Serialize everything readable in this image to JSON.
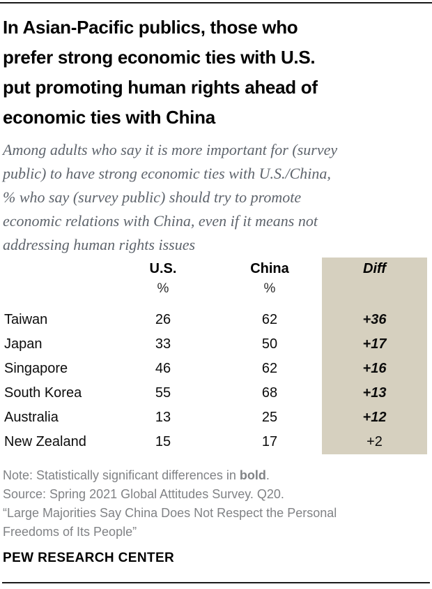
{
  "colors": {
    "diff_column_bg": "#d6d0bf",
    "title_text": "#000000",
    "subtitle_text": "#5e646c",
    "footnote_text": "#808285",
    "rule": "#1a1a1a"
  },
  "header": {
    "title": "In Asian-Pacific publics, those who\nprefer strong economic ties with U.S.\nput promoting human rights ahead of\neconomic ties with China",
    "subtitle": "Among adults who say it is more important for (survey\npublic) to have strong economic ties with U.S./China,\n% who say (survey public) should try to promote\neconomic relations with China, even if it means not\naddressing human rights issues"
  },
  "table": {
    "columns": [
      {
        "label": "U.S.",
        "unit": "%"
      },
      {
        "label": "China",
        "unit": "%"
      },
      {
        "label": "Diff",
        "unit": ""
      }
    ],
    "rows": [
      {
        "country": "Taiwan",
        "us": "26",
        "china": "62",
        "diff": "+36",
        "significant": true
      },
      {
        "country": "Japan",
        "us": "33",
        "china": "50",
        "diff": "+17",
        "significant": true
      },
      {
        "country": "Singapore",
        "us": "46",
        "china": "62",
        "diff": "+16",
        "significant": true
      },
      {
        "country": "South Korea",
        "us": "55",
        "china": "68",
        "diff": "+13",
        "significant": true
      },
      {
        "country": "Australia",
        "us": "13",
        "china": "25",
        "diff": "+12",
        "significant": true
      },
      {
        "country": "New Zealand",
        "us": "15",
        "china": "17",
        "diff": "+2",
        "significant": false
      }
    ]
  },
  "footer": {
    "note_prefix": "Note: Statistically significant differences in ",
    "note_bold": "bold",
    "note_suffix": ".",
    "source": "Source: Spring 2021 Global Attitudes Survey. Q20.",
    "report": "“Large Majorities Say China Does Not Respect the Personal\nFreedoms of Its People”",
    "brand": "PEW RESEARCH CENTER"
  },
  "chart_data": {
    "type": "table",
    "title": "In Asian-Pacific publics, those who prefer strong economic ties with U.S. put promoting human rights ahead of economic ties with China",
    "subtitle": "Among adults who say it is more important for (survey public) to have strong economic ties with U.S./China, % who say (survey public) should try to promote economic relations with China, even if it means not addressing human rights issues",
    "categories": [
      "Taiwan",
      "Japan",
      "Singapore",
      "South Korea",
      "Australia",
      "New Zealand"
    ],
    "series": [
      {
        "name": "U.S. (%)",
        "values": [
          26,
          33,
          46,
          55,
          13,
          15
        ]
      },
      {
        "name": "China (%)",
        "values": [
          62,
          50,
          62,
          68,
          25,
          17
        ]
      },
      {
        "name": "Diff",
        "values": [
          36,
          17,
          16,
          13,
          12,
          2
        ]
      }
    ],
    "diff_significant_bold": [
      true,
      true,
      true,
      true,
      true,
      false
    ],
    "source": "Spring 2021 Global Attitudes Survey. Q20.",
    "legend_position": "none",
    "grid": false
  }
}
